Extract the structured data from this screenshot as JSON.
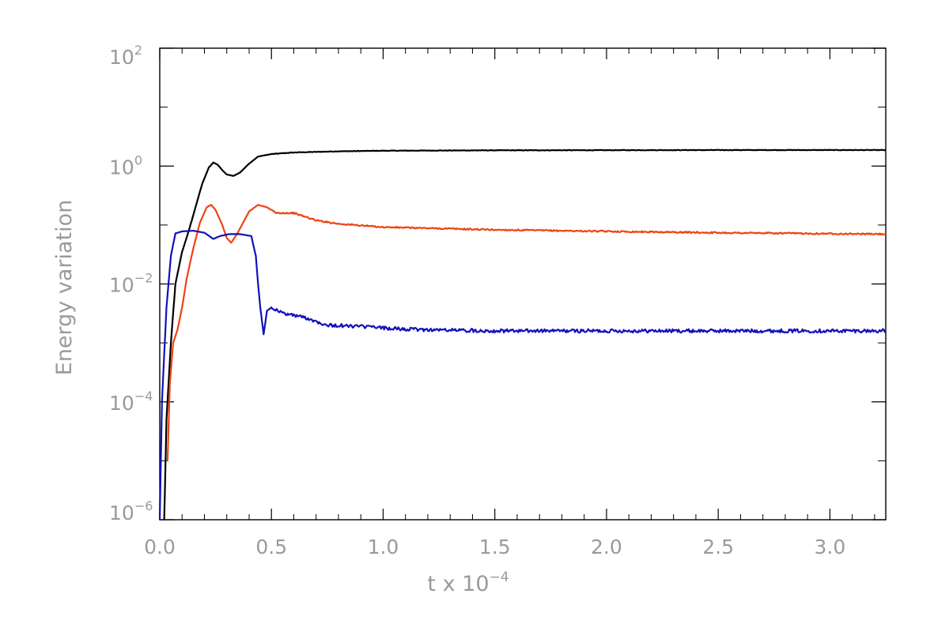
{
  "chart_data": {
    "type": "line",
    "title": "",
    "xlabel": {
      "base": "t x 10",
      "exponent": "−4"
    },
    "ylabel": "Energy variation",
    "xlim": [
      0.0,
      3.25
    ],
    "ylim": [
      1e-06,
      100
    ],
    "y_scale": "log",
    "grid": false,
    "x_ticks": [
      {
        "value": 0.0,
        "label": "0.0"
      },
      {
        "value": 0.5,
        "label": "0.5"
      },
      {
        "value": 1.0,
        "label": "1.0"
      },
      {
        "value": 1.5,
        "label": "1.5"
      },
      {
        "value": 2.0,
        "label": "2.0"
      },
      {
        "value": 2.5,
        "label": "2.5"
      },
      {
        "value": 3.0,
        "label": "3.0"
      }
    ],
    "y_ticks": [
      {
        "value": 1e-06,
        "base": "10",
        "exponent": "−6"
      },
      {
        "value": 0.0001,
        "base": "10",
        "exponent": "−4"
      },
      {
        "value": 0.01,
        "base": "10",
        "exponent": "−2"
      },
      {
        "value": 1,
        "base": "10",
        "exponent": "0"
      },
      {
        "value": 100,
        "base": "10",
        "exponent": "2"
      }
    ],
    "y_minor_ticks": [
      1e-05,
      0.001,
      0.1,
      10
    ],
    "colors": {
      "axis": "#000000",
      "text": "#9a9a9a",
      "series_1": "#000000",
      "series_2": "#ee4411",
      "series_3": "#1111bb"
    },
    "series": [
      {
        "color": "#000000",
        "noise": 0.004,
        "points": [
          [
            0.02,
            1e-06
          ],
          [
            0.03,
            5e-05
          ],
          [
            0.05,
            0.001
          ],
          [
            0.07,
            0.01
          ],
          [
            0.1,
            0.035
          ],
          [
            0.13,
            0.08
          ],
          [
            0.16,
            0.2
          ],
          [
            0.19,
            0.5
          ],
          [
            0.22,
            0.95
          ],
          [
            0.24,
            1.15
          ],
          [
            0.26,
            1.05
          ],
          [
            0.28,
            0.85
          ],
          [
            0.3,
            0.72
          ],
          [
            0.33,
            0.68
          ],
          [
            0.36,
            0.78
          ],
          [
            0.4,
            1.1
          ],
          [
            0.44,
            1.45
          ],
          [
            0.5,
            1.6
          ],
          [
            0.6,
            1.7
          ],
          [
            0.8,
            1.78
          ],
          [
            1.0,
            1.82
          ],
          [
            1.5,
            1.85
          ],
          [
            2.0,
            1.86
          ],
          [
            2.5,
            1.87
          ],
          [
            3.25,
            1.87
          ]
        ]
      },
      {
        "color": "#ee4411",
        "noise": 0.012,
        "points": [
          [
            0.035,
            1e-05
          ],
          [
            0.045,
            0.0002
          ],
          [
            0.06,
            0.001
          ],
          [
            0.08,
            0.0017
          ],
          [
            0.1,
            0.004
          ],
          [
            0.12,
            0.012
          ],
          [
            0.15,
            0.04
          ],
          [
            0.18,
            0.11
          ],
          [
            0.21,
            0.2
          ],
          [
            0.23,
            0.22
          ],
          [
            0.25,
            0.18
          ],
          [
            0.28,
            0.1
          ],
          [
            0.3,
            0.06
          ],
          [
            0.32,
            0.05
          ],
          [
            0.35,
            0.075
          ],
          [
            0.4,
            0.17
          ],
          [
            0.44,
            0.22
          ],
          [
            0.48,
            0.2
          ],
          [
            0.52,
            0.16
          ],
          [
            0.6,
            0.16
          ],
          [
            0.7,
            0.12
          ],
          [
            0.8,
            0.105
          ],
          [
            1.0,
            0.092
          ],
          [
            1.5,
            0.083
          ],
          [
            2.0,
            0.078
          ],
          [
            2.5,
            0.074
          ],
          [
            3.25,
            0.07
          ]
        ]
      },
      {
        "color": "#1111bb",
        "noise": 0.03,
        "points": [
          [
            0.0,
            1e-06
          ],
          [
            0.01,
            0.0001
          ],
          [
            0.03,
            0.004
          ],
          [
            0.05,
            0.03
          ],
          [
            0.07,
            0.072
          ],
          [
            0.1,
            0.078
          ],
          [
            0.15,
            0.08
          ],
          [
            0.2,
            0.074
          ],
          [
            0.24,
            0.058
          ],
          [
            0.27,
            0.065
          ],
          [
            0.31,
            0.07
          ],
          [
            0.36,
            0.07
          ],
          [
            0.41,
            0.065
          ],
          [
            0.43,
            0.03
          ],
          [
            0.44,
            0.01
          ],
          [
            0.45,
            0.004
          ],
          [
            0.465,
            0.0014
          ],
          [
            0.48,
            0.0035
          ],
          [
            0.5,
            0.004
          ],
          [
            0.55,
            0.0032
          ],
          [
            0.65,
            0.0027
          ],
          [
            0.75,
            0.002
          ],
          [
            0.9,
            0.0019
          ],
          [
            1.1,
            0.0017
          ],
          [
            1.5,
            0.0016
          ],
          [
            2.0,
            0.0016
          ],
          [
            2.5,
            0.0016
          ],
          [
            3.25,
            0.0016
          ]
        ]
      }
    ]
  }
}
